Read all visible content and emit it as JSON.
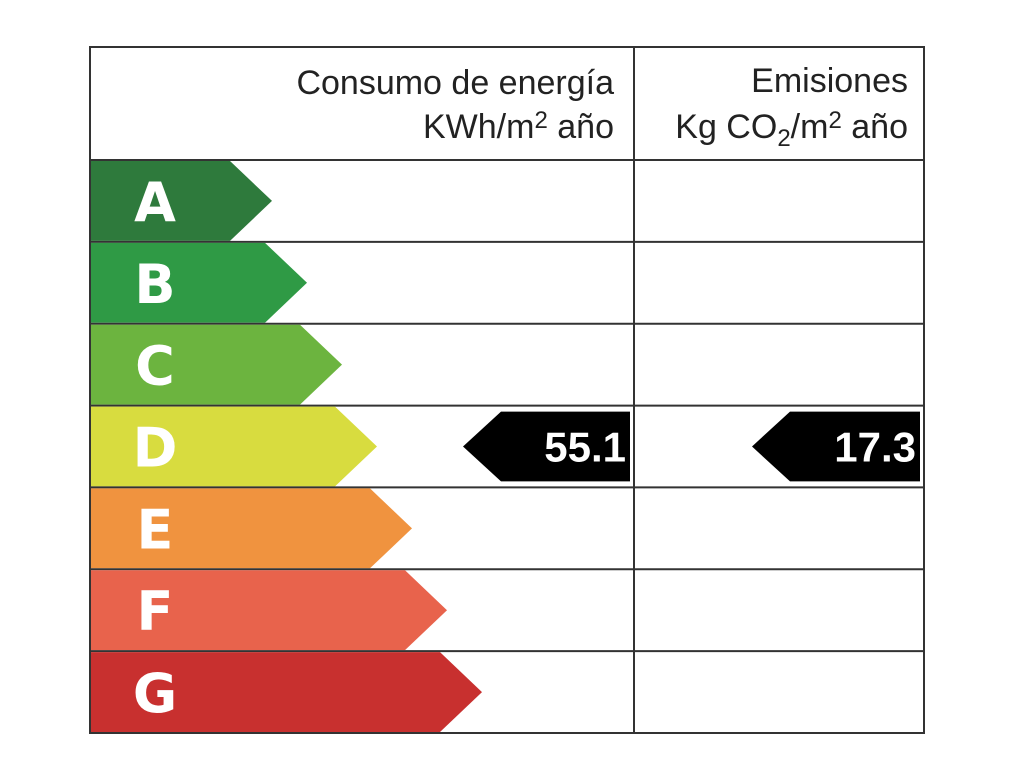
{
  "header": {
    "energy": {
      "title": "Consumo de energía",
      "unit": [
        "KWh/m",
        "2",
        " año"
      ]
    },
    "emissions": {
      "title": "Emisiones",
      "unit": [
        "Kg CO",
        "2",
        "/m",
        "2",
        " año"
      ]
    }
  },
  "rows": [
    {
      "letter": "A",
      "color": "#2e7a3c"
    },
    {
      "letter": "B",
      "color": "#2f9a45"
    },
    {
      "letter": "C",
      "color": "#6cb43f"
    },
    {
      "letter": "D",
      "color": "#d8dc3f",
      "energy": 55.1,
      "emissions": 17.3
    },
    {
      "letter": "E",
      "color": "#f0933f"
    },
    {
      "letter": "F",
      "color": "#e8634c"
    },
    {
      "letter": "G",
      "color": "#c8302f"
    }
  ]
}
